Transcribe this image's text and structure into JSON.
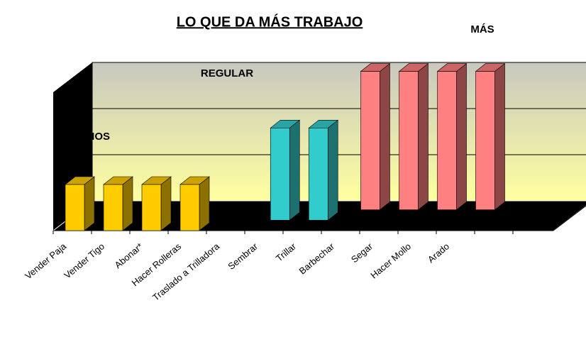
{
  "chart_data": {
    "type": "bar3d",
    "title": "LO QUE DA MÁS TRABAJO",
    "annotations": [
      "MÁS",
      "REGULAR",
      "MENOS"
    ],
    "categories": [
      "Vender Paja",
      "Vender Tigo",
      "Abonar*",
      "Hacer Rolleras",
      "Traslado a Trilladora",
      "Sembrar",
      "Trillar",
      "Barbechar",
      "Segar",
      "Hacer Mollo",
      "Arado"
    ],
    "series": [
      {
        "color": "#ffcc00",
        "values": [
          1,
          1,
          1,
          1,
          null,
          null,
          null,
          null,
          null,
          null,
          null
        ]
      },
      {
        "color": "#33cccc",
        "values": [
          null,
          null,
          null,
          null,
          null,
          2,
          2,
          null,
          null,
          null,
          null
        ]
      },
      {
        "color": "#ff8080",
        "values": [
          null,
          null,
          null,
          null,
          null,
          null,
          null,
          3,
          3,
          3,
          3
        ]
      }
    ],
    "ylim": [
      0,
      3
    ],
    "yticks": [
      0,
      1,
      2,
      3
    ],
    "grid": true
  }
}
